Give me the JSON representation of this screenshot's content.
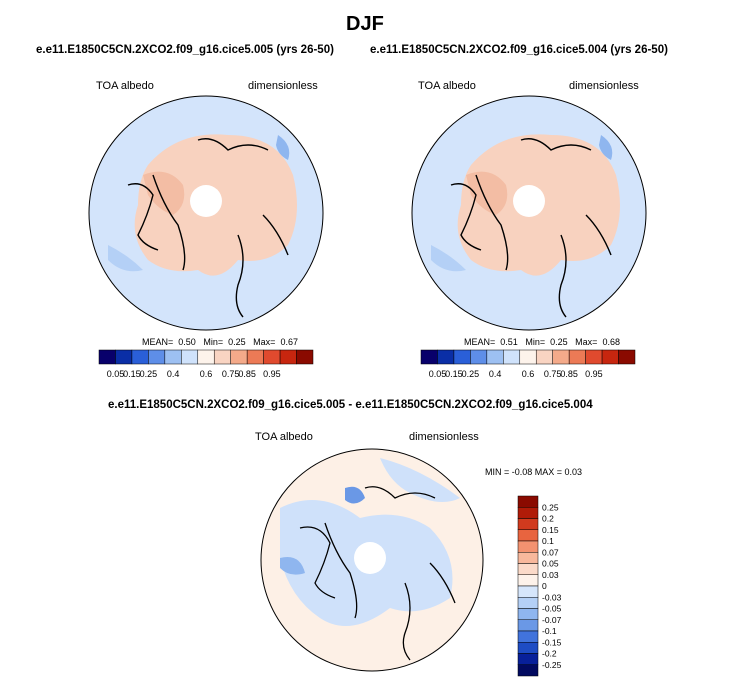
{
  "title": "DJF",
  "panels": [
    {
      "case": "e.e11.E1850C5CN.2XCO2.f09_g16.cice5.005 (yrs 26-50)",
      "field": "TOA albedo",
      "units": "dimensionless",
      "stats": {
        "mean_label": "MEAN=",
        "mean": "0.50",
        "min_label": "Min=",
        "min": "0.25",
        "max_label": "Max=",
        "max": "0.67"
      }
    },
    {
      "case": "e.e11.E1850C5CN.2XCO2.f09_g16.cice5.004 (yrs 26-50)",
      "field": "TOA albedo",
      "units": "dimensionless",
      "stats": {
        "mean_label": "MEAN=",
        "mean": "0.51",
        "min_label": "Min=",
        "min": "0.25",
        "max_label": "Max=",
        "max": "0.68"
      }
    }
  ],
  "difference": {
    "title": "e.e11.E1850C5CN.2XCO2.f09_g16.cice5.005 - e.e11.E1850C5CN.2XCO2.f09_g16.cice5.004",
    "field": "TOA albedo",
    "units": "dimensionless",
    "stats_label": "MIN =  -0.08 MAX =  0.03"
  },
  "chart_data": [
    {
      "type": "heatmap",
      "projection": "north-polar-stereographic",
      "title": "TOA albedo",
      "colorbar": {
        "orientation": "horizontal",
        "ticks": [
          "0.05",
          "0.15",
          "0.25",
          "0.4",
          "0.6",
          "0.75",
          "0.85",
          "0.95"
        ],
        "colors": [
          "#08006b",
          "#0a2ea6",
          "#2a5fd8",
          "#5e8ee8",
          "#9dc0f2",
          "#cfe2fb",
          "#fdf3eb",
          "#f9d4c2",
          "#f4aa8a",
          "#ec7a56",
          "#e04a2e",
          "#c7260f",
          "#8a0a00"
        ]
      },
      "stats": {
        "mean": 0.5,
        "min": 0.25,
        "max": 0.67
      }
    },
    {
      "type": "heatmap",
      "projection": "north-polar-stereographic",
      "title": "TOA albedo",
      "colorbar": {
        "orientation": "horizontal",
        "ticks": [
          "0.05",
          "0.15",
          "0.25",
          "0.4",
          "0.6",
          "0.75",
          "0.85",
          "0.95"
        ]
      },
      "stats": {
        "mean": 0.51,
        "min": 0.25,
        "max": 0.68
      }
    },
    {
      "type": "heatmap",
      "projection": "north-polar-stereographic",
      "title": "TOA albedo difference",
      "colorbar": {
        "orientation": "vertical",
        "ticks": [
          "0.25",
          "0.2",
          "0.15",
          "0.1",
          "0.07",
          "0.05",
          "0.03",
          "0",
          "-0.03",
          "-0.05",
          "-0.07",
          "-0.1",
          "-0.15",
          "-0.2",
          "-0.25"
        ],
        "colors": [
          "#8a0a00",
          "#b01b08",
          "#d13a1e",
          "#e8643f",
          "#f39270",
          "#f8b89c",
          "#fbdac9",
          "#fdf2ea",
          "#d6e6fb",
          "#b4d0f6",
          "#8fb6ef",
          "#6a98e6",
          "#4173dc",
          "#1e4cc4",
          "#08209a",
          "#020a60"
        ]
      },
      "stats": {
        "min": -0.08,
        "max": 0.03
      }
    }
  ]
}
